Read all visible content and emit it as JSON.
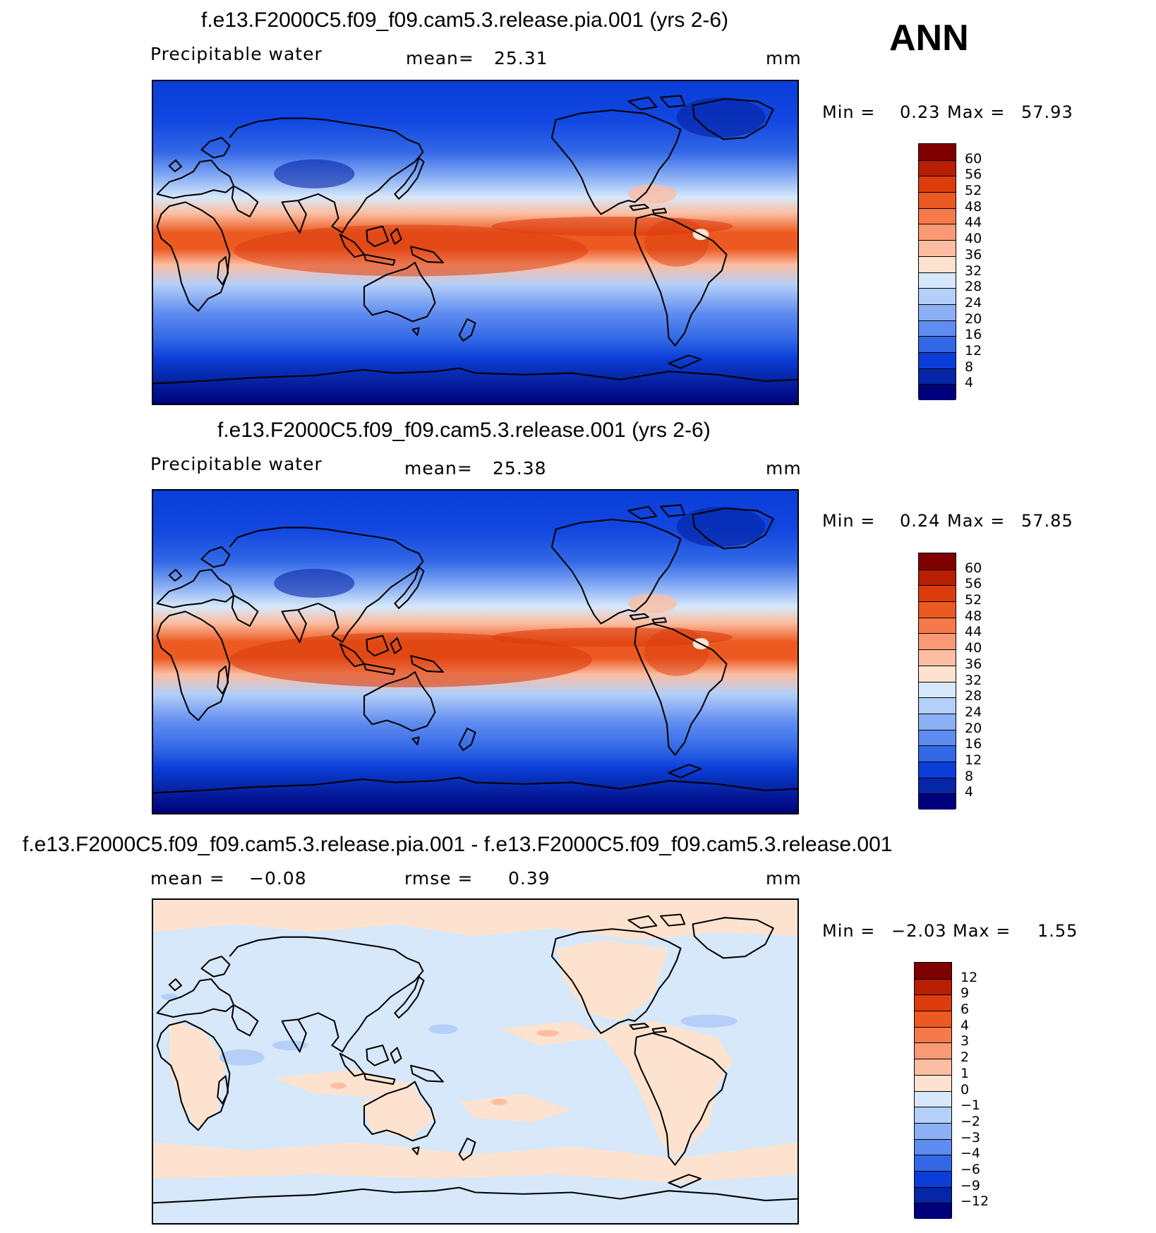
{
  "season": "ANN",
  "panels": [
    {
      "title": "f.e13.F2000C5.f09_f09.cam5.3.release.pia.001 (yrs 2-6)",
      "left_label": "Precipitable  water",
      "stat_label": "mean=",
      "stat_value": "25.31",
      "units": "mm",
      "min_label": "Min  =",
      "min_value": "0.23",
      "max_label": "Max  =",
      "max_value": "57.93",
      "colorbar": {
        "ticks": [
          "60",
          "56",
          "52",
          "48",
          "44",
          "40",
          "36",
          "32",
          "28",
          "24",
          "20",
          "16",
          "12",
          "8",
          "4"
        ],
        "colors": [
          "#800000",
          "#b81e00",
          "#dc3c0c",
          "#ec5a22",
          "#f6794a",
          "#f99a74",
          "#fbbea2",
          "#fde3cf",
          "#d6e8fa",
          "#b4cff8",
          "#8bb0f5",
          "#5f8cf0",
          "#3268e6",
          "#0b3ed8",
          "#0626a8",
          "#00007c"
        ]
      }
    },
    {
      "title": "f.e13.F2000C5.f09_f09.cam5.3.release.001 (yrs 2-6)",
      "left_label": "Precipitable  water",
      "stat_label": "mean=",
      "stat_value": "25.38",
      "units": "mm",
      "min_label": "Min  =",
      "min_value": "0.24",
      "max_label": "Max  =",
      "max_value": "57.85",
      "colorbar": {
        "ticks": [
          "60",
          "56",
          "52",
          "48",
          "44",
          "40",
          "36",
          "32",
          "28",
          "24",
          "20",
          "16",
          "12",
          "8",
          "4"
        ],
        "colors": [
          "#800000",
          "#b81e00",
          "#dc3c0c",
          "#ec5a22",
          "#f6794a",
          "#f99a74",
          "#fbbea2",
          "#fde3cf",
          "#d6e8fa",
          "#b4cff8",
          "#8bb0f5",
          "#5f8cf0",
          "#3268e6",
          "#0b3ed8",
          "#0626a8",
          "#00007c"
        ]
      }
    },
    {
      "title": "f.e13.F2000C5.f09_f09.cam5.3.release.pia.001 - f.e13.F2000C5.f09_f09.cam5.3.release.001",
      "mean_label": "mean  =",
      "mean_value": "−0.08",
      "stat_label": "rmse  =",
      "stat_value": "0.39",
      "units": "mm",
      "min_label": "Min  =",
      "min_value": "−2.03",
      "max_label": "Max  =",
      "max_value": "1.55",
      "colorbar": {
        "ticks": [
          "12",
          "9",
          "6",
          "4",
          "3",
          "2",
          "1",
          "0",
          "−1",
          "−2",
          "−3",
          "−4",
          "−6",
          "−9",
          "−12"
        ],
        "colors": [
          "#800000",
          "#b81e00",
          "#dc3c0c",
          "#ec5a22",
          "#f6794a",
          "#f99a74",
          "#fbbea2",
          "#fde3cf",
          "#d6e8fa",
          "#b4cff8",
          "#8bb0f5",
          "#5f8cf0",
          "#3268e6",
          "#0b3ed8",
          "#0626a8",
          "#00007c"
        ]
      }
    }
  ]
}
